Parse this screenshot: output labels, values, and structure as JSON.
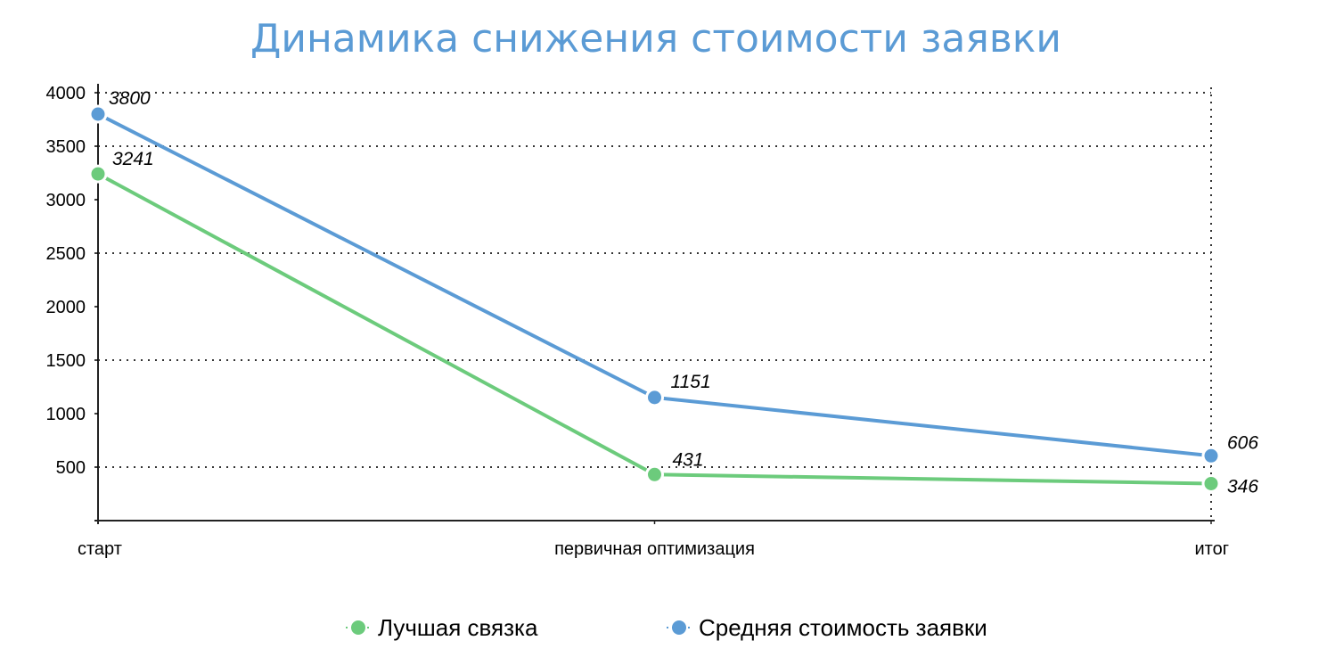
{
  "chart_data": {
    "type": "line",
    "title": "Динамика снижения стоимости заявки",
    "categories": [
      "старт",
      "первичная оптимизация",
      "итог"
    ],
    "series": [
      {
        "name": "Лучшая связка",
        "values": [
          3241,
          431,
          346
        ],
        "color": "#6ccb7c",
        "labels": [
          "3241",
          "431",
          "346"
        ]
      },
      {
        "name": "Средняя стоимость заявки",
        "values": [
          3800,
          1151,
          606
        ],
        "color": "#5b9bd5",
        "labels": [
          "3800",
          "1151",
          "606"
        ]
      }
    ],
    "y_ticks": [
      "500",
      "1000",
      "1500",
      "2000",
      "2500",
      "3000",
      "3500",
      "4000"
    ],
    "ylim": [
      0,
      4000
    ],
    "grid": true,
    "legend_position": "bottom"
  }
}
